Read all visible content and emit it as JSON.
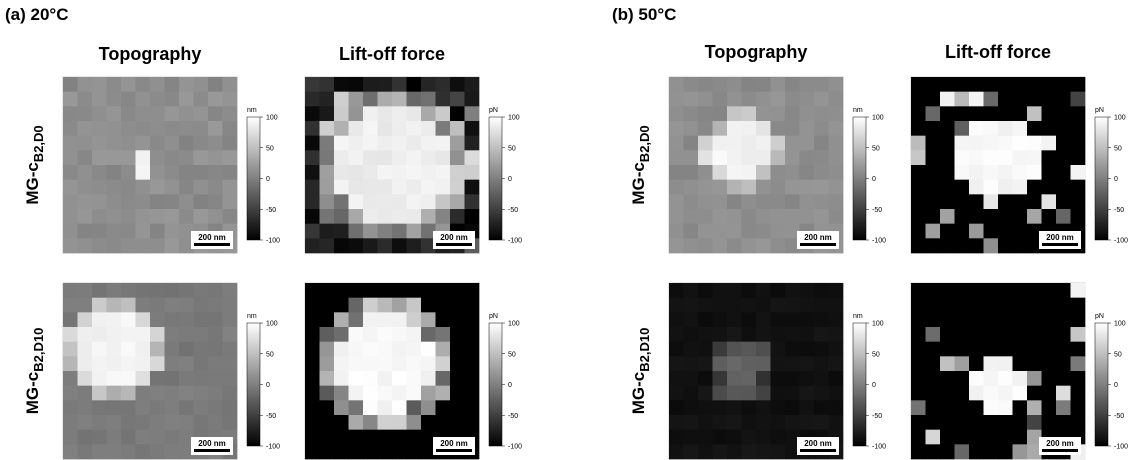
{
  "panels": [
    {
      "title": "(a) 20°C"
    },
    {
      "title": "(b) 50°C"
    }
  ],
  "columns": [
    "Topography",
    "Lift-off force"
  ],
  "rows": [
    {
      "label": "MG-c",
      "subscript": "B2,D0"
    },
    {
      "label": "MG-c",
      "subscript": "B2,D10"
    }
  ],
  "units": [
    "nm",
    "pN"
  ],
  "colorbar_ticks": [
    100,
    50,
    0,
    -50,
    -100
  ],
  "scale_bar": "200 nm"
}
